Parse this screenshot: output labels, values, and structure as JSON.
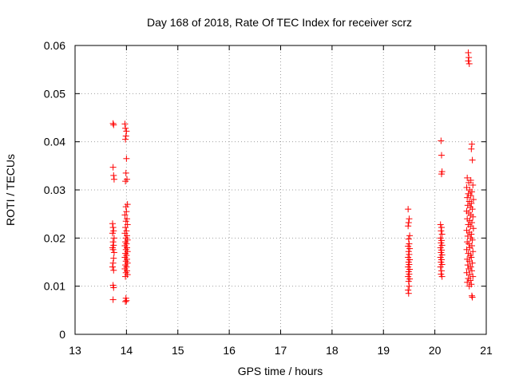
{
  "chart_data": {
    "type": "scatter",
    "title": "Day 168 of 2018, Rate Of TEC Index for receiver scrz",
    "xlabel": "GPS time / hours",
    "ylabel": "ROTI / TECUs",
    "xlim": [
      13,
      21
    ],
    "ylim": [
      0,
      0.06
    ],
    "x_ticks": [
      13,
      14,
      15,
      16,
      17,
      18,
      19,
      20,
      21
    ],
    "x_tick_labels": [
      "13",
      "14",
      "15",
      "16",
      "17",
      "18",
      "19",
      "20",
      "21"
    ],
    "y_ticks": [
      0,
      0.01,
      0.02,
      0.03,
      0.04,
      0.05,
      0.06
    ],
    "y_tick_labels": [
      "0",
      "0.01",
      "0.02",
      "0.03",
      "0.04",
      "0.05",
      "0.06"
    ],
    "grid": true,
    "marker": "plus",
    "color": "#ff0000",
    "series": [
      {
        "name": "ROTI",
        "points": [
          [
            13.74,
            0.0438
          ],
          [
            13.75,
            0.0435
          ],
          [
            13.74,
            0.0347
          ],
          [
            13.75,
            0.033
          ],
          [
            13.76,
            0.0322
          ],
          [
            13.73,
            0.023
          ],
          [
            13.74,
            0.0222
          ],
          [
            13.75,
            0.0215
          ],
          [
            13.73,
            0.021
          ],
          [
            13.76,
            0.02
          ],
          [
            13.74,
            0.0192
          ],
          [
            13.75,
            0.0185
          ],
          [
            13.73,
            0.018
          ],
          [
            13.74,
            0.0176
          ],
          [
            13.76,
            0.017
          ],
          [
            13.75,
            0.0158
          ],
          [
            13.74,
            0.0148
          ],
          [
            13.73,
            0.014
          ],
          [
            13.75,
            0.0133
          ],
          [
            13.74,
            0.0102
          ],
          [
            13.75,
            0.0097
          ],
          [
            13.74,
            0.0072
          ],
          [
            13.97,
            0.0437
          ],
          [
            13.98,
            0.0428
          ],
          [
            14.0,
            0.0422
          ],
          [
            13.99,
            0.0412
          ],
          [
            13.98,
            0.0405
          ],
          [
            14.0,
            0.0365
          ],
          [
            13.99,
            0.0335
          ],
          [
            14.01,
            0.0322
          ],
          [
            13.98,
            0.0318
          ],
          [
            14.02,
            0.027
          ],
          [
            13.99,
            0.0265
          ],
          [
            14.0,
            0.0255
          ],
          [
            13.97,
            0.0248
          ],
          [
            14.01,
            0.024
          ],
          [
            13.99,
            0.0235
          ],
          [
            14.02,
            0.0228
          ],
          [
            13.98,
            0.0222
          ],
          [
            14.0,
            0.0215
          ],
          [
            13.97,
            0.021
          ],
          [
            14.01,
            0.0205
          ],
          [
            13.99,
            0.02
          ],
          [
            14.02,
            0.0196
          ],
          [
            13.98,
            0.0192
          ],
          [
            14.0,
            0.0188
          ],
          [
            13.97,
            0.0184
          ],
          [
            14.01,
            0.018
          ],
          [
            13.99,
            0.0176
          ],
          [
            14.02,
            0.0172
          ],
          [
            13.98,
            0.0168
          ],
          [
            14.0,
            0.0164
          ],
          [
            13.97,
            0.016
          ],
          [
            14.01,
            0.0156
          ],
          [
            13.99,
            0.0152
          ],
          [
            14.02,
            0.0148
          ],
          [
            13.98,
            0.0144
          ],
          [
            14.0,
            0.014
          ],
          [
            13.97,
            0.0136
          ],
          [
            14.01,
            0.0132
          ],
          [
            13.99,
            0.0128
          ],
          [
            14.02,
            0.0124
          ],
          [
            13.98,
            0.012
          ],
          [
            13.99,
            0.0075
          ],
          [
            14.0,
            0.007
          ],
          [
            13.98,
            0.0068
          ],
          [
            19.48,
            0.026
          ],
          [
            19.5,
            0.024
          ],
          [
            19.49,
            0.0232
          ],
          [
            19.48,
            0.0225
          ],
          [
            19.51,
            0.0205
          ],
          [
            19.49,
            0.0198
          ],
          [
            19.5,
            0.0188
          ],
          [
            19.48,
            0.0183
          ],
          [
            19.51,
            0.0178
          ],
          [
            19.49,
            0.0172
          ],
          [
            19.5,
            0.0166
          ],
          [
            19.48,
            0.016
          ],
          [
            19.51,
            0.0155
          ],
          [
            19.49,
            0.015
          ],
          [
            19.5,
            0.0145
          ],
          [
            19.48,
            0.014
          ],
          [
            19.51,
            0.0135
          ],
          [
            19.49,
            0.013
          ],
          [
            19.5,
            0.0125
          ],
          [
            19.48,
            0.012
          ],
          [
            19.51,
            0.0115
          ],
          [
            19.49,
            0.011
          ],
          [
            19.5,
            0.01
          ],
          [
            19.48,
            0.0092
          ],
          [
            19.49,
            0.0085
          ],
          [
            20.12,
            0.0402
          ],
          [
            20.13,
            0.0372
          ],
          [
            20.14,
            0.0338
          ],
          [
            20.13,
            0.0333
          ],
          [
            20.11,
            0.0228
          ],
          [
            20.13,
            0.0222
          ],
          [
            20.12,
            0.0215
          ],
          [
            20.14,
            0.0208
          ],
          [
            20.11,
            0.02
          ],
          [
            20.13,
            0.0195
          ],
          [
            20.12,
            0.019
          ],
          [
            20.14,
            0.0185
          ],
          [
            20.11,
            0.018
          ],
          [
            20.13,
            0.0175
          ],
          [
            20.12,
            0.017
          ],
          [
            20.14,
            0.0165
          ],
          [
            20.11,
            0.016
          ],
          [
            20.13,
            0.0155
          ],
          [
            20.12,
            0.015
          ],
          [
            20.14,
            0.0145
          ],
          [
            20.11,
            0.014
          ],
          [
            20.13,
            0.0132
          ],
          [
            20.12,
            0.0125
          ],
          [
            20.14,
            0.012
          ],
          [
            20.65,
            0.0585
          ],
          [
            20.66,
            0.0575
          ],
          [
            20.65,
            0.0568
          ],
          [
            20.67,
            0.0562
          ],
          [
            20.72,
            0.0395
          ],
          [
            20.71,
            0.0385
          ],
          [
            20.73,
            0.0362
          ],
          [
            20.63,
            0.0325
          ],
          [
            20.7,
            0.032
          ],
          [
            20.66,
            0.0315
          ],
          [
            20.74,
            0.031
          ],
          [
            20.62,
            0.0305
          ],
          [
            20.68,
            0.03
          ],
          [
            20.72,
            0.0296
          ],
          [
            20.65,
            0.0292
          ],
          [
            20.7,
            0.0288
          ],
          [
            20.63,
            0.0284
          ],
          [
            20.75,
            0.028
          ],
          [
            20.67,
            0.0276
          ],
          [
            20.71,
            0.0272
          ],
          [
            20.64,
            0.0268
          ],
          [
            20.69,
            0.0264
          ],
          [
            20.73,
            0.026
          ],
          [
            20.62,
            0.0256
          ],
          [
            20.66,
            0.0252
          ],
          [
            20.7,
            0.0248
          ],
          [
            20.74,
            0.0244
          ],
          [
            20.63,
            0.024
          ],
          [
            20.68,
            0.0236
          ],
          [
            20.72,
            0.0232
          ],
          [
            20.65,
            0.0228
          ],
          [
            20.69,
            0.0224
          ],
          [
            20.75,
            0.022
          ],
          [
            20.62,
            0.0216
          ],
          [
            20.67,
            0.0212
          ],
          [
            20.71,
            0.0208
          ],
          [
            20.64,
            0.0204
          ],
          [
            20.7,
            0.02
          ],
          [
            20.73,
            0.0196
          ],
          [
            20.63,
            0.0192
          ],
          [
            20.66,
            0.0188
          ],
          [
            20.72,
            0.0184
          ],
          [
            20.68,
            0.018
          ],
          [
            20.62,
            0.0176
          ],
          [
            20.74,
            0.0172
          ],
          [
            20.65,
            0.0168
          ],
          [
            20.69,
            0.0164
          ],
          [
            20.71,
            0.016
          ],
          [
            20.63,
            0.0156
          ],
          [
            20.67,
            0.0152
          ],
          [
            20.73,
            0.0148
          ],
          [
            20.64,
            0.0144
          ],
          [
            20.7,
            0.014
          ],
          [
            20.66,
            0.0136
          ],
          [
            20.72,
            0.0132
          ],
          [
            20.62,
            0.0128
          ],
          [
            20.68,
            0.0124
          ],
          [
            20.74,
            0.012
          ],
          [
            20.65,
            0.0116
          ],
          [
            20.69,
            0.0112
          ],
          [
            20.63,
            0.0108
          ],
          [
            20.71,
            0.0104
          ],
          [
            20.67,
            0.01
          ],
          [
            20.72,
            0.008
          ],
          [
            20.73,
            0.0077
          ]
        ]
      }
    ]
  }
}
